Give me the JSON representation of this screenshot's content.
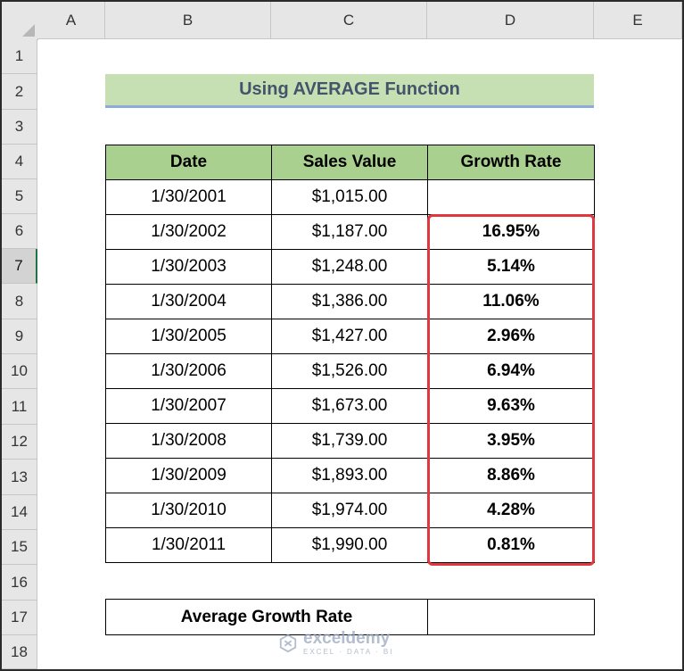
{
  "columns": [
    "A",
    "B",
    "C",
    "D",
    "E"
  ],
  "rows": [
    "1",
    "2",
    "3",
    "4",
    "5",
    "6",
    "7",
    "8",
    "9",
    "10",
    "11",
    "12",
    "13",
    "14",
    "15",
    "16",
    "17",
    "18"
  ],
  "title": "Using AVERAGE Function",
  "table": {
    "headers": [
      "Date",
      "Sales Value",
      "Growth Rate"
    ],
    "rows": [
      {
        "date": "1/30/2001",
        "sales": "$1,015.00",
        "rate": ""
      },
      {
        "date": "1/30/2002",
        "sales": "$1,187.00",
        "rate": "16.95%"
      },
      {
        "date": "1/30/2003",
        "sales": "$1,248.00",
        "rate": "5.14%"
      },
      {
        "date": "1/30/2004",
        "sales": "$1,386.00",
        "rate": "11.06%"
      },
      {
        "date": "1/30/2005",
        "sales": "$1,427.00",
        "rate": "2.96%"
      },
      {
        "date": "1/30/2006",
        "sales": "$1,526.00",
        "rate": "6.94%"
      },
      {
        "date": "1/30/2007",
        "sales": "$1,673.00",
        "rate": "9.63%"
      },
      {
        "date": "1/30/2008",
        "sales": "$1,739.00",
        "rate": "3.95%"
      },
      {
        "date": "1/30/2009",
        "sales": "$1,893.00",
        "rate": "8.86%"
      },
      {
        "date": "1/30/2010",
        "sales": "$1,974.00",
        "rate": "4.28%"
      },
      {
        "date": "1/30/2011",
        "sales": "$1,990.00",
        "rate": "0.81%"
      }
    ]
  },
  "average": {
    "label": "Average Growth Rate",
    "value": ""
  },
  "watermark": {
    "name": "exceldemy",
    "tagline": "EXCEL · DATA · BI"
  },
  "selected_row": "7",
  "colors": {
    "header_fill": "#a9d08e",
    "title_fill": "#c6e0b4",
    "highlight": "#e0383e"
  }
}
